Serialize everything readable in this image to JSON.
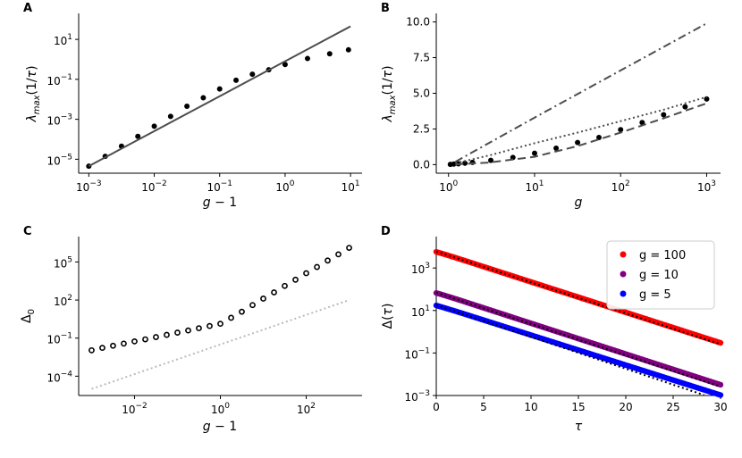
{
  "chart_data": [
    {
      "panel": "A",
      "type": "scatter",
      "xscale": "log",
      "yscale": "log",
      "xlim": [
        0.0007,
        15
      ],
      "ylim": [
        2e-06,
        200
      ],
      "xlabel": "g − 1",
      "ylabel": "λ_max (1/τ)",
      "xticks": [
        {
          "v": 0.001,
          "m": -3
        },
        {
          "v": 0.01,
          "m": -2
        },
        {
          "v": 0.1,
          "m": -1
        },
        {
          "v": 1,
          "m": 0
        },
        {
          "v": 10,
          "m": 1
        }
      ],
      "yticks": [
        {
          "v": 1e-05,
          "m": -5
        },
        {
          "v": 0.001,
          "m": -3
        },
        {
          "v": 0.1,
          "m": -1
        },
        {
          "v": 10,
          "m": 1
        }
      ],
      "series": [
        {
          "style": "points",
          "color": "#000000",
          "x": [
            0.001,
            0.00178,
            0.00316,
            0.00562,
            0.01,
            0.0178,
            0.0316,
            0.0562,
            0.1,
            0.178,
            0.316,
            0.562,
            1,
            2.2,
            4.8,
            9.3
          ],
          "y": [
            4.5e-06,
            1.4e-05,
            4.5e-05,
            0.00014,
            0.00045,
            0.0014,
            0.0045,
            0.012,
            0.033,
            0.09,
            0.18,
            0.3,
            0.55,
            1.1,
            1.9,
            3.0
          ]
        },
        {
          "style": "solid",
          "color": "#4d4d4d",
          "x": [
            0.001,
            10
          ],
          "y": [
            4.5e-06,
            45
          ]
        }
      ]
    },
    {
      "panel": "B",
      "type": "scatter",
      "xscale": "log",
      "yscale": "linear",
      "xlim": [
        0.72,
        1450
      ],
      "ylim": [
        -0.6,
        10.6
      ],
      "xlabel": "g",
      "ylabel": "λ_max (1/τ)",
      "xticks": [
        {
          "v": 1,
          "m": 0
        },
        {
          "v": 10,
          "m": 1
        },
        {
          "v": 100,
          "m": 2
        },
        {
          "v": 1000,
          "m": 3
        }
      ],
      "yticks": [
        {
          "v": 0,
          "t": "0.0"
        },
        {
          "v": 2.5,
          "t": "2.5"
        },
        {
          "v": 5,
          "t": "5.0"
        },
        {
          "v": 7.5,
          "t": "7.5"
        },
        {
          "v": 10,
          "t": "10.0"
        }
      ],
      "series": [
        {
          "style": "points",
          "color": "#000000",
          "x": [
            1.05,
            1.15,
            1.3,
            1.55,
            1.9,
            3.1,
            5.6,
            10,
            17.8,
            31.6,
            56,
            100,
            178,
            316,
            562,
            1000
          ],
          "y": [
            0.02,
            0.04,
            0.06,
            0.1,
            0.16,
            0.3,
            0.5,
            0.8,
            1.15,
            1.55,
            1.9,
            2.45,
            2.95,
            3.5,
            4.05,
            4.6
          ]
        },
        {
          "style": "dashdot",
          "color": "#4d4d4d",
          "x": [
            1.2,
            10,
            100,
            1000
          ],
          "y": [
            0.2,
            3.3,
            6.6,
            9.9
          ]
        },
        {
          "style": "dotted",
          "color": "#4d4d4d",
          "x": [
            1.2,
            3,
            10,
            31.6,
            100,
            316,
            1000
          ],
          "y": [
            0.1,
            0.65,
            1.5,
            2.25,
            3.05,
            3.85,
            4.75
          ]
        },
        {
          "style": "dashed",
          "color": "#4d4d4d",
          "x": [
            1.2,
            3,
            10,
            31.6,
            100,
            316,
            1000
          ],
          "y": [
            0.02,
            0.15,
            0.55,
            1.3,
            2.25,
            3.25,
            4.3
          ]
        }
      ]
    },
    {
      "panel": "C",
      "type": "scatter",
      "xscale": "log",
      "yscale": "log",
      "xlim": [
        0.0005,
        2000
      ],
      "ylim": [
        3e-06,
        10000000
      ],
      "xlabel": "g − 1",
      "ylabel": "Δ_0",
      "xticks": [
        {
          "v": 0.01,
          "m": -2
        },
        {
          "v": 1,
          "m": 0
        },
        {
          "v": 100,
          "m": 2
        }
      ],
      "yticks": [
        {
          "v": 0.0001,
          "m": -4
        },
        {
          "v": 0.1,
          "m": -1
        },
        {
          "v": 100,
          "m": 2
        },
        {
          "v": 100000,
          "m": 5
        }
      ],
      "series": [
        {
          "style": "rings",
          "color": "#000000",
          "x": [
            0.001,
            0.00178,
            0.00316,
            0.00562,
            0.01,
            0.0178,
            0.0316,
            0.0562,
            0.1,
            0.178,
            0.316,
            0.562,
            1,
            1.78,
            3.16,
            5.62,
            10,
            17.8,
            31.6,
            56.2,
            100,
            178,
            316,
            562,
            1000
          ],
          "y": [
            0.011,
            0.017,
            0.025,
            0.037,
            0.055,
            0.08,
            0.12,
            0.18,
            0.27,
            0.4,
            0.6,
            0.9,
            1.35,
            4,
            12,
            40,
            130,
            400,
            1300,
            4000,
            13000,
            40000,
            130000,
            400000,
            1300000
          ]
        },
        {
          "style": "dotted",
          "color": "#bbbbbb",
          "x": [
            0.001,
            1000
          ],
          "y": [
            1e-05,
            100
          ]
        }
      ]
    },
    {
      "panel": "D",
      "type": "line",
      "xscale": "linear",
      "yscale": "log",
      "xlim": [
        0,
        30
      ],
      "ylim": [
        0.001,
        30000
      ],
      "xlabel": "τ",
      "ylabel": "Δ(τ)",
      "xticks": [
        {
          "v": 0,
          "t": "0"
        },
        {
          "v": 5,
          "t": "5"
        },
        {
          "v": 10,
          "t": "10"
        },
        {
          "v": 15,
          "t": "15"
        },
        {
          "v": 20,
          "t": "20"
        },
        {
          "v": 25,
          "t": "25"
        },
        {
          "v": 30,
          "t": "30"
        }
      ],
      "yticks": [
        {
          "v": 0.001,
          "m": -3
        },
        {
          "v": 0.1,
          "m": -1
        },
        {
          "v": 10,
          "m": 1
        },
        {
          "v": 1000,
          "m": 3
        }
      ],
      "legend_position": "top-right",
      "series": [
        {
          "name": "g = 100",
          "style": "points",
          "color": "#ff0000",
          "d0": 6000,
          "rate": 0.33
        },
        {
          "name": "g = 10",
          "style": "points",
          "color": "#800080",
          "d0": 70,
          "rate": 0.333
        },
        {
          "name": "g = 5",
          "style": "points",
          "color": "#0000ff",
          "d0": 18,
          "rate": 0.325
        }
      ],
      "theory": [
        {
          "style": "dotted",
          "color": "#000000",
          "d0": 6000,
          "rate": 0.335
        },
        {
          "style": "dotted",
          "color": "#000000",
          "d0": 70,
          "rate": 0.34
        },
        {
          "style": "dotted",
          "color": "#000000",
          "d0": 18,
          "rate": 0.345
        }
      ]
    }
  ]
}
